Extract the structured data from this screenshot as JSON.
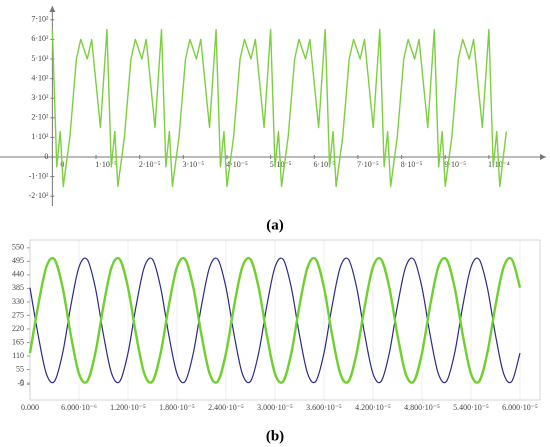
{
  "chart_data": [
    {
      "type": "line",
      "subplot_label": "(a)",
      "x": [
        0,
        1e-06,
        1.8e-06,
        2.5e-06,
        4e-06,
        5.5e-06,
        6.5e-06,
        8e-06,
        9e-06,
        1.1e-05,
        1.25e-05,
        1.35e-05,
        1.43e-05,
        1.5e-05,
        1.65e-05,
        1.8e-05,
        1.9e-05,
        2.05e-05,
        2.15e-05,
        2.35e-05,
        2.5e-05,
        2.6e-05,
        2.68e-05,
        2.75e-05,
        2.9e-05,
        3.05e-05,
        3.15e-05,
        3.3e-05,
        3.4e-05,
        3.6e-05,
        3.75e-05,
        3.85e-05,
        3.93e-05,
        4e-05,
        4.15e-05,
        4.3e-05,
        4.4e-05,
        4.55e-05,
        4.65e-05,
        4.85e-05,
        5e-05,
        5.1e-05,
        5.18e-05,
        5.25e-05,
        5.4e-05,
        5.55e-05,
        5.65e-05,
        5.8e-05,
        5.9e-05,
        6.1e-05,
        6.25e-05,
        6.35e-05,
        6.43e-05,
        6.5e-05,
        6.65e-05,
        6.8e-05,
        6.9e-05,
        7.05e-05,
        7.15e-05,
        7.35e-05,
        7.5e-05,
        7.6e-05,
        7.68e-05,
        7.75e-05,
        7.9e-05,
        8.05e-05,
        8.15e-05,
        8.3e-05,
        8.4e-05,
        8.6e-05,
        8.75e-05,
        8.85e-05,
        8.93e-05,
        9e-05,
        9.15e-05,
        9.3e-05,
        9.4e-05,
        9.55e-05,
        9.65e-05,
        9.85e-05,
        0.0001,
        0.000101,
        0.0001018,
        0.0001025,
        0.000104
      ],
      "series": [
        {
          "color": "#7ccf3f",
          "values": [
            650,
            -50,
            130,
            -150,
            100,
            500,
            600,
            500,
            600,
            150,
            650,
            -50,
            130,
            -150,
            100,
            500,
            600,
            500,
            600,
            150,
            650,
            -50,
            130,
            -150,
            100,
            500,
            600,
            500,
            600,
            150,
            650,
            -50,
            130,
            -150,
            100,
            500,
            600,
            500,
            600,
            150,
            650,
            -50,
            130,
            -150,
            100,
            500,
            600,
            500,
            600,
            150,
            650,
            -50,
            130,
            -150,
            100,
            500,
            600,
            500,
            600,
            150,
            650,
            -50,
            130,
            -150,
            100,
            500,
            600,
            500,
            600,
            150,
            650,
            -50,
            130,
            -150,
            100,
            500,
            600,
            500,
            600,
            150,
            650,
            -50,
            130,
            -150,
            130
          ]
        }
      ],
      "xlim": [
        -1.2e-05,
        0.000114
      ],
      "ylim": [
        -250,
        750
      ],
      "xticks": [
        0,
        {
          "value": 1e-05,
          "label": "1·10⁻⁵"
        },
        {
          "value": 2e-05,
          "label": "2·10⁻⁵"
        },
        {
          "value": 3e-05,
          "label": "3·10⁻⁵"
        },
        {
          "value": 4e-05,
          "label": "4·10⁻⁵"
        },
        {
          "value": 5e-05,
          "label": "5·10⁻⁵"
        },
        {
          "value": 6e-05,
          "label": "6·10⁻⁵"
        },
        {
          "value": 7e-05,
          "label": "7·10⁻⁵"
        },
        {
          "value": 8e-05,
          "label": "8·10⁻⁵"
        },
        {
          "value": 9e-05,
          "label": "9·10⁻⁵"
        },
        {
          "value": 0.0001,
          "label": "1·10⁻⁴"
        }
      ],
      "yticks": [
        {
          "value": -200,
          "label": "-2·10²"
        },
        {
          "value": -100,
          "label": "-1·10²"
        },
        0,
        {
          "value": 100,
          "label": "1·10²"
        },
        {
          "value": 200,
          "label": "2·10²"
        },
        {
          "value": 300,
          "label": "3·10²"
        },
        {
          "value": 400,
          "label": "4·10²"
        },
        {
          "value": 500,
          "label": "5·10²"
        },
        {
          "value": 600,
          "label": "6·10²"
        },
        {
          "value": 700,
          "label": "7·10²"
        }
      ]
    },
    {
      "type": "line",
      "subplot_label": "(b)",
      "x": [
        0,
        1e-06,
        2e-06,
        3e-06,
        4e-06,
        5e-06,
        6e-06,
        7e-06,
        8e-06,
        9e-06,
        1e-05,
        1.1e-05,
        1.2e-05,
        1.3e-05,
        1.4e-05,
        1.5e-05,
        1.6e-05,
        1.7e-05,
        1.8e-05,
        1.9e-05,
        2e-05,
        2.1e-05,
        2.2e-05,
        2.3e-05,
        2.4e-05,
        2.5e-05,
        2.6e-05,
        2.7e-05,
        2.8e-05,
        2.9e-05,
        3e-05,
        3.1e-05,
        3.2e-05,
        3.3e-05,
        3.4e-05,
        3.5e-05,
        3.6e-05,
        3.7e-05,
        3.8e-05,
        3.9e-05,
        4e-05,
        4.1e-05,
        4.2e-05,
        4.3e-05,
        4.4e-05,
        4.5e-05,
        4.6e-05,
        4.7e-05,
        4.8e-05,
        4.9e-05,
        5e-05,
        5.1e-05,
        5.2e-05,
        5.3e-05,
        5.4e-05,
        5.5e-05,
        5.6e-05,
        5.7e-05,
        5.8e-05,
        5.9e-05,
        6e-05
      ],
      "series": [
        {
          "color": "#2b2a86",
          "values": [
            388,
            195,
            38,
            7,
            122,
            315,
            472,
            503,
            388,
            195,
            38,
            7,
            122,
            315,
            472,
            503,
            388,
            195,
            38,
            7,
            122,
            315,
            472,
            503,
            388,
            195,
            38,
            7,
            122,
            315,
            472,
            503,
            388,
            195,
            38,
            7,
            122,
            315,
            472,
            503,
            388,
            195,
            38,
            7,
            122,
            315,
            472,
            503,
            388,
            195,
            38,
            7,
            122,
            315,
            472,
            503,
            388,
            195,
            38,
            7,
            122
          ]
        },
        {
          "color": "#6fd02e",
          "values": [
            122,
            315,
            472,
            503,
            388,
            195,
            38,
            7,
            122,
            315,
            472,
            503,
            388,
            195,
            38,
            7,
            122,
            315,
            472,
            503,
            388,
            195,
            38,
            7,
            122,
            315,
            472,
            503,
            388,
            195,
            38,
            7,
            122,
            315,
            472,
            503,
            388,
            195,
            38,
            7,
            122,
            315,
            472,
            503,
            388,
            195,
            38,
            7,
            122,
            315,
            472,
            503,
            388,
            195,
            38,
            7,
            122,
            315,
            472,
            503,
            388
          ]
        }
      ],
      "xlim": [
        0,
        6.245e-05
      ],
      "ylim": [
        -69,
        582
      ],
      "xticks": [
        {
          "value": 0,
          "label": "0.000"
        },
        {
          "value": 6e-06,
          "label": "6.000·10⁻⁶"
        },
        {
          "value": 1.2e-05,
          "label": "1.200·10⁻⁵"
        },
        {
          "value": 1.8e-05,
          "label": "1.800·10⁻⁵"
        },
        {
          "value": 2.4e-05,
          "label": "2.400·10⁻⁵"
        },
        {
          "value": 3e-05,
          "label": "3.000·10⁻⁵"
        },
        {
          "value": 3.6e-05,
          "label": "3.600·10⁻⁵"
        },
        {
          "value": 4.2e-05,
          "label": "4.200·10⁻⁵"
        },
        {
          "value": 4.8e-05,
          "label": "4.800·10⁻⁵"
        },
        {
          "value": 5.4e-05,
          "label": "5.400·10⁻⁵"
        },
        {
          "value": 6e-05,
          "label": "6.000·10⁻⁵"
        }
      ],
      "yticks": [
        -5,
        0,
        55,
        110,
        165,
        220,
        275,
        330,
        385,
        440,
        495,
        550
      ]
    }
  ]
}
